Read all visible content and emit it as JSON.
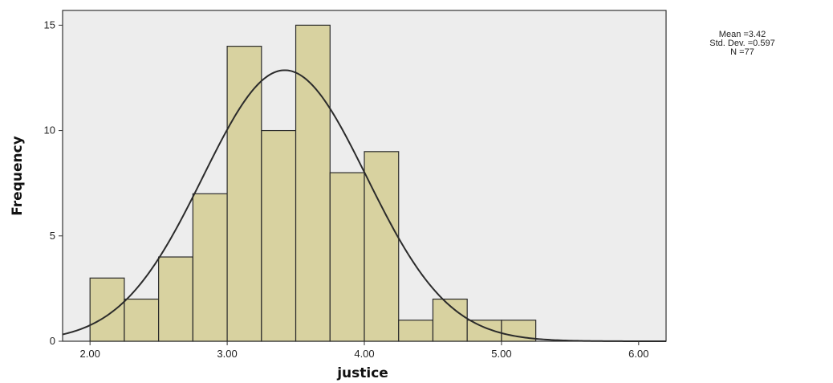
{
  "chart_data": {
    "type": "bar",
    "title": "",
    "xlabel": "justice",
    "ylabel": "Frequency",
    "xlim": [
      1.8,
      6.2
    ],
    "ylim": [
      0,
      15.7
    ],
    "xticks": [
      2.0,
      3.0,
      4.0,
      5.0,
      6.0
    ],
    "xtick_labels": [
      "2.00",
      "3.00",
      "4.00",
      "5.00",
      "6.00"
    ],
    "yticks": [
      0,
      5,
      10,
      15
    ],
    "ytick_labels": [
      "0",
      "5",
      "10",
      "15"
    ],
    "bin_width": 0.25,
    "bins": [
      {
        "x0": 2.0,
        "x1": 2.25,
        "count": 3
      },
      {
        "x0": 2.25,
        "x1": 2.5,
        "count": 2
      },
      {
        "x0": 2.5,
        "x1": 2.75,
        "count": 4
      },
      {
        "x0": 2.75,
        "x1": 3.0,
        "count": 7
      },
      {
        "x0": 3.0,
        "x1": 3.25,
        "count": 14
      },
      {
        "x0": 3.25,
        "x1": 3.5,
        "count": 10
      },
      {
        "x0": 3.5,
        "x1": 3.75,
        "count": 15
      },
      {
        "x0": 3.75,
        "x1": 4.0,
        "count": 8
      },
      {
        "x0": 4.0,
        "x1": 4.25,
        "count": 9
      },
      {
        "x0": 4.25,
        "x1": 4.5,
        "count": 1
      },
      {
        "x0": 4.5,
        "x1": 4.75,
        "count": 2
      },
      {
        "x0": 4.75,
        "x1": 5.0,
        "count": 1
      },
      {
        "x0": 5.0,
        "x1": 5.25,
        "count": 1
      }
    ],
    "normal_curve": {
      "mean": 3.42,
      "std": 0.597,
      "n": 77
    },
    "stats_lines": [
      "Mean =3.42",
      "Std. Dev. =0.597",
      "N =77"
    ],
    "grid": false,
    "legend": "none"
  },
  "colors": {
    "plot_background": "#ededed",
    "bar_fill": "#d8d2a0",
    "bar_stroke": "#2b2b2b",
    "curve": "#2b2b2b",
    "axis": "#333333"
  }
}
